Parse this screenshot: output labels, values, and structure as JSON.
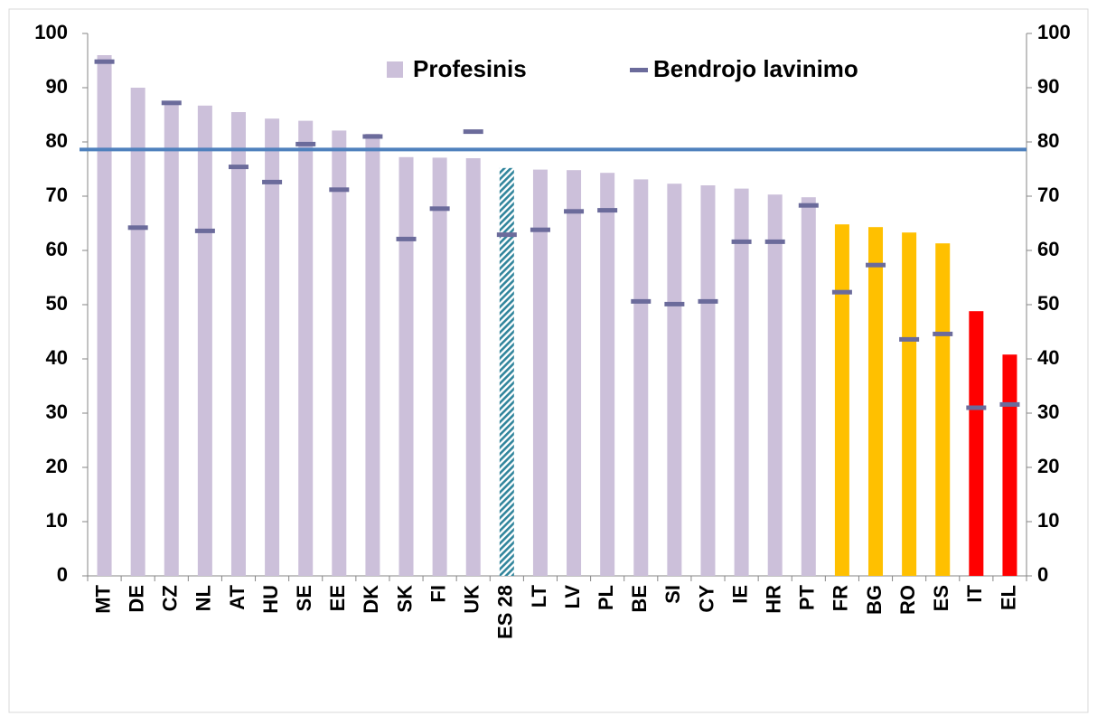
{
  "chart_data": {
    "type": "bar",
    "categories": [
      "MT",
      "DE",
      "CZ",
      "NL",
      "AT",
      "HU",
      "SE",
      "EE",
      "DK",
      "SK",
      "FI",
      "UK",
      "ES 28",
      "LT",
      "LV",
      "PL",
      "BE",
      "SI",
      "CY",
      "IE",
      "HR",
      "PT",
      "FR",
      "BG",
      "RO",
      "ES",
      "IT",
      "EL"
    ],
    "series": [
      {
        "name": "Profesinis",
        "color": "#ccc0da",
        "colors": [
          "#ccc0da",
          "#ccc0da",
          "#ccc0da",
          "#ccc0da",
          "#ccc0da",
          "#ccc0da",
          "#ccc0da",
          "#ccc0da",
          "#ccc0da",
          "#ccc0da",
          "#ccc0da",
          "#ccc0da",
          "#31859c",
          "#ccc0da",
          "#ccc0da",
          "#ccc0da",
          "#ccc0da",
          "#ccc0da",
          "#ccc0da",
          "#ccc0da",
          "#ccc0da",
          "#ccc0da",
          "#ffc000",
          "#ffc000",
          "#ffc000",
          "#ffc000",
          "#ff0000",
          "#ff0000"
        ],
        "hatched": [
          "ES 28"
        ],
        "values": [
          96,
          90,
          87.5,
          86.7,
          85.5,
          84.3,
          83.9,
          82.1,
          81.5,
          77.2,
          77.1,
          77,
          75.2,
          74.9,
          74.8,
          74.3,
          73.1,
          72.3,
          72,
          71.4,
          70.3,
          69.8,
          64.8,
          64.3,
          63.3,
          61.3,
          48.8,
          40.8
        ]
      },
      {
        "name": "Bendrojo lavinimo",
        "color": "#6b6b9b",
        "marker": "dash",
        "values": [
          94.8,
          64.2,
          87.2,
          63.6,
          75.4,
          72.6,
          79.6,
          71.2,
          81,
          62.1,
          67.7,
          81.9,
          62.9,
          63.8,
          67.2,
          67.4,
          50.6,
          50.1,
          50.6,
          61.6,
          61.6,
          68.3,
          52.3,
          57.3,
          43.6,
          44.6,
          31,
          31.6
        ]
      }
    ],
    "reference_line": {
      "value": 78.6,
      "color": "#4f81bd"
    },
    "ylim": [
      0,
      100
    ],
    "yticks": [
      0,
      10,
      20,
      30,
      40,
      50,
      60,
      70,
      80,
      90,
      100
    ],
    "y2lim": [
      0,
      100
    ],
    "y2ticks": [
      0,
      10,
      20,
      30,
      40,
      50,
      60,
      70,
      80,
      90,
      100
    ],
    "grid": false,
    "legend": "top"
  }
}
